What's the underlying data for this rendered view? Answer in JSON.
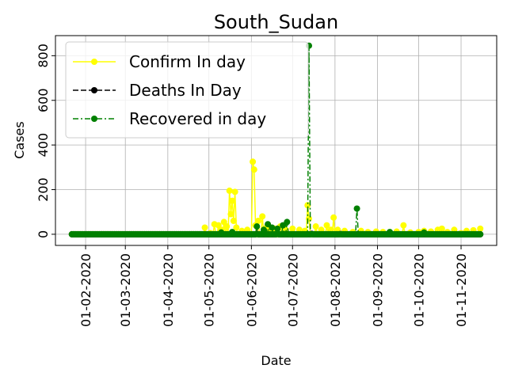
{
  "chart_data": {
    "type": "line",
    "title": "South_Sudan",
    "xlabel": "Date",
    "ylabel": "Cases",
    "x_start": "2020-01-22",
    "x_end": "2020-11-15",
    "xlim": [
      "2020-01-10",
      "2020-11-27"
    ],
    "ylim": [
      -50,
      890
    ],
    "x_ticks": [
      "2020-02-01",
      "2020-03-01",
      "2020-04-01",
      "2020-05-01",
      "2020-06-01",
      "2020-07-01",
      "2020-08-01",
      "2020-09-01",
      "2020-10-01",
      "2020-11-01"
    ],
    "x_tick_labels": [
      "01-02-2020",
      "01-03-2020",
      "01-04-2020",
      "01-05-2020",
      "01-06-2020",
      "01-07-2020",
      "01-08-2020",
      "01-09-2020",
      "01-10-2020",
      "01-11-2020"
    ],
    "y_ticks": [
      0,
      200,
      400,
      600,
      800
    ],
    "y_tick_labels": [
      "0",
      "200",
      "400",
      "600",
      "800"
    ],
    "grid": true,
    "legend_position": "top-left",
    "series": [
      {
        "name": "Confirm In day",
        "color": "#ffff00",
        "linestyle": "solid",
        "marker": "circle",
        "default": 0,
        "points": [
          [
            "2020-04-28",
            30
          ],
          [
            "2020-05-02",
            5
          ],
          [
            "2020-05-05",
            45
          ],
          [
            "2020-05-08",
            40
          ],
          [
            "2020-05-10",
            20
          ],
          [
            "2020-05-12",
            55
          ],
          [
            "2020-05-14",
            35
          ],
          [
            "2020-05-16",
            195
          ],
          [
            "2020-05-17",
            90
          ],
          [
            "2020-05-18",
            150
          ],
          [
            "2020-05-19",
            60
          ],
          [
            "2020-05-20",
            190
          ],
          [
            "2020-05-21",
            30
          ],
          [
            "2020-05-25",
            15
          ],
          [
            "2020-05-29",
            20
          ],
          [
            "2020-06-02",
            325
          ],
          [
            "2020-06-03",
            290
          ],
          [
            "2020-06-04",
            40
          ],
          [
            "2020-06-06",
            60
          ],
          [
            "2020-06-09",
            80
          ],
          [
            "2020-06-12",
            30
          ],
          [
            "2020-06-15",
            20
          ],
          [
            "2020-06-18",
            25
          ],
          [
            "2020-06-22",
            35
          ],
          [
            "2020-06-26",
            20
          ],
          [
            "2020-07-01",
            25
          ],
          [
            "2020-07-06",
            20
          ],
          [
            "2020-07-10",
            15
          ],
          [
            "2020-07-12",
            130
          ],
          [
            "2020-07-13",
            70
          ],
          [
            "2020-07-18",
            35
          ],
          [
            "2020-07-22",
            20
          ],
          [
            "2020-07-26",
            40
          ],
          [
            "2020-07-29",
            20
          ],
          [
            "2020-07-31",
            75
          ],
          [
            "2020-08-03",
            20
          ],
          [
            "2020-08-08",
            15
          ],
          [
            "2020-08-14",
            10
          ],
          [
            "2020-08-20",
            15
          ],
          [
            "2020-08-25",
            10
          ],
          [
            "2020-08-31",
            12
          ],
          [
            "2020-09-05",
            10
          ],
          [
            "2020-09-10",
            8
          ],
          [
            "2020-09-15",
            12
          ],
          [
            "2020-09-20",
            40
          ],
          [
            "2020-09-25",
            8
          ],
          [
            "2020-10-01",
            10
          ],
          [
            "2020-10-05",
            15
          ],
          [
            "2020-10-10",
            12
          ],
          [
            "2020-10-15",
            20
          ],
          [
            "2020-10-18",
            25
          ],
          [
            "2020-10-22",
            10
          ],
          [
            "2020-10-27",
            20
          ],
          [
            "2020-11-01",
            5
          ],
          [
            "2020-11-05",
            15
          ],
          [
            "2020-11-10",
            18
          ],
          [
            "2020-11-15",
            25
          ]
        ]
      },
      {
        "name": "Deaths In Day",
        "color": "#000000",
        "linestyle": "dashed",
        "marker": "circle",
        "default": 0,
        "points": [
          [
            "2020-06-05",
            2
          ],
          [
            "2020-06-20",
            3
          ],
          [
            "2020-07-15",
            2
          ],
          [
            "2020-08-05",
            1
          ]
        ]
      },
      {
        "name": "Recovered in day",
        "color": "#008000",
        "linestyle": "dashdot",
        "marker": "circle",
        "default": 0,
        "points": [
          [
            "2020-05-10",
            8
          ],
          [
            "2020-05-18",
            10
          ],
          [
            "2020-06-05",
            35
          ],
          [
            "2020-06-10",
            20
          ],
          [
            "2020-06-13",
            45
          ],
          [
            "2020-06-16",
            30
          ],
          [
            "2020-06-20",
            25
          ],
          [
            "2020-06-24",
            40
          ],
          [
            "2020-06-27",
            55
          ],
          [
            "2020-07-13",
            845
          ],
          [
            "2020-08-17",
            115
          ],
          [
            "2020-09-10",
            10
          ],
          [
            "2020-10-05",
            8
          ]
        ]
      }
    ]
  }
}
